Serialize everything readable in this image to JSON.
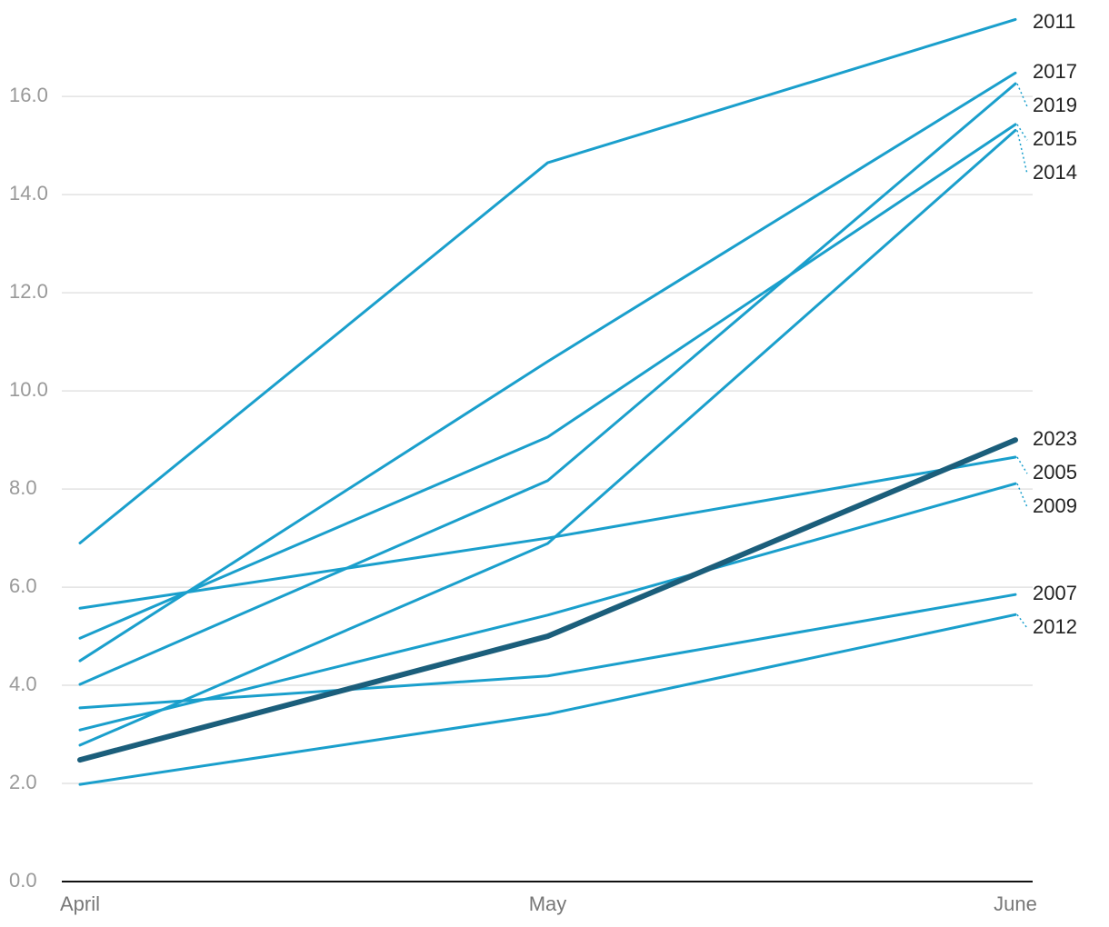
{
  "chart_data": {
    "type": "line",
    "categories": [
      "April",
      "May",
      "June"
    ],
    "ylim": [
      0,
      17.8
    ],
    "yticks": [
      {
        "value": 0,
        "label": "0.0"
      },
      {
        "value": 2,
        "label": "2.0"
      },
      {
        "value": 4,
        "label": "4.0"
      },
      {
        "value": 6,
        "label": "6.0"
      },
      {
        "value": 8,
        "label": "8.0"
      },
      {
        "value": 10,
        "label": "10.0"
      },
      {
        "value": 12,
        "label": "12.0"
      },
      {
        "value": 14,
        "label": "14.0"
      },
      {
        "value": 16,
        "label": "16.0"
      }
    ],
    "grid": true,
    "series": [
      {
        "name": "2011",
        "color": "#1a9fcc",
        "width": 3,
        "values": [
          6.9,
          14.65,
          17.57
        ]
      },
      {
        "name": "2017",
        "color": "#1a9fcc",
        "width": 3,
        "values": [
          4.5,
          10.6,
          16.48
        ]
      },
      {
        "name": "2019",
        "color": "#1a9fcc",
        "width": 3,
        "values": [
          4.02,
          8.17,
          16.26
        ]
      },
      {
        "name": "2015",
        "color": "#1a9fcc",
        "width": 3,
        "values": [
          4.96,
          9.06,
          15.43
        ]
      },
      {
        "name": "2014",
        "color": "#1a9fcc",
        "width": 3,
        "values": [
          2.78,
          6.89,
          15.31
        ]
      },
      {
        "name": "2023",
        "color": "#1b5e7b",
        "width": 6,
        "values": [
          2.48,
          5.0,
          9.0
        ]
      },
      {
        "name": "2005",
        "color": "#1a9fcc",
        "width": 3,
        "values": [
          5.57,
          7.0,
          8.65
        ]
      },
      {
        "name": "2009",
        "color": "#1a9fcc",
        "width": 3,
        "values": [
          3.09,
          5.43,
          8.11
        ]
      },
      {
        "name": "2007",
        "color": "#1a9fcc",
        "width": 3,
        "values": [
          3.54,
          4.19,
          5.85
        ]
      },
      {
        "name": "2012",
        "color": "#1a9fcc",
        "width": 3,
        "values": [
          1.98,
          3.41,
          5.44
        ]
      }
    ]
  }
}
